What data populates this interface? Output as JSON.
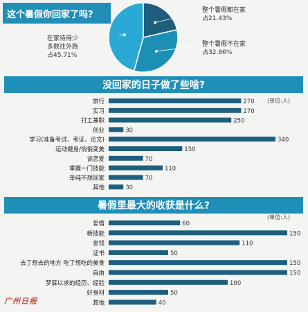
{
  "watermark": "广州日报",
  "chart_data": [
    {
      "type": "pie",
      "title": "这个暑假你回家了吗?",
      "slices": [
        {
          "label": "整个暑假都在家",
          "value": 21.43,
          "display": "占21.43%",
          "color": "#1e5f7e"
        },
        {
          "label": "整个暑假不在家",
          "value": 32.86,
          "display": "占32.86%",
          "color": "#1c8fb5"
        },
        {
          "label": "在家待得少 多数往外跑",
          "line1": "在家待得少",
          "line2": "多数往外跑",
          "value": 45.71,
          "display": "占45.71%",
          "color": "#29a9d3"
        }
      ]
    },
    {
      "type": "bar",
      "title": "没回家的日子做了些啥?",
      "unit": "(单位:人)",
      "categories": [
        "旅行",
        "实习",
        "打工兼职",
        "创业",
        "学习(准备考试、考证、论文)",
        "运动健身/悄悄变美",
        "谈恋爱",
        "掌握一门技能",
        "单纯不想回家",
        "其他"
      ],
      "values": [
        270,
        270,
        250,
        30,
        340,
        150,
        70,
        110,
        70,
        30
      ],
      "xlim": [
        0,
        340
      ],
      "color": "#1e5f7e"
    },
    {
      "type": "bar",
      "title": "暑假里最大的收获是什么?",
      "unit": "(单位:人)",
      "categories": [
        "爱情",
        "新技能",
        "金钱",
        "证书",
        "去了想去的地方 吃了想吃的美食",
        "自由",
        "梦寐以求的经历、经验",
        "好身材",
        "其他"
      ],
      "values": [
        60,
        150,
        110,
        50,
        150,
        150,
        100,
        50,
        40
      ],
      "xlim": [
        0,
        150
      ],
      "color": "#1e5f7e"
    }
  ]
}
